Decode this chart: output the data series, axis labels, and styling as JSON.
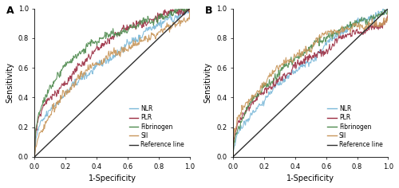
{
  "panel_labels": [
    "A",
    "B"
  ],
  "xlabel": "1-Specificity",
  "ylabel": "Sensitivity",
  "xlim": [
    0.0,
    1.0
  ],
  "ylim": [
    0.0,
    1.0
  ],
  "xticks": [
    0.0,
    0.2,
    0.4,
    0.6,
    0.8,
    1.0
  ],
  "yticks": [
    0.0,
    0.2,
    0.4,
    0.6,
    0.8,
    1.0
  ],
  "colors": {
    "NLR": "#7ab8d9",
    "PLR": "#9b2d42",
    "Fibrinogen": "#4e8a4e",
    "SII": "#c8965a",
    "Reference": "#2f2f2f"
  },
  "legend_labels": [
    "NLR",
    "PLR",
    "Fibrinogen",
    "SII",
    "Reference line"
  ],
  "panel_A": {
    "NLR_auc": 0.68,
    "PLR_auc": 0.72,
    "Fibrinogen_auc": 0.74,
    "SII_auc": 0.65
  },
  "panel_B": {
    "NLR_auc": 0.65,
    "PLR_auc": 0.7,
    "Fibrinogen_auc": 0.68,
    "SII_auc": 0.72
  },
  "bg_color": "#ffffff",
  "tick_fontsize": 6,
  "label_fontsize": 7,
  "legend_fontsize": 5.5,
  "panel_label_fontsize": 9
}
